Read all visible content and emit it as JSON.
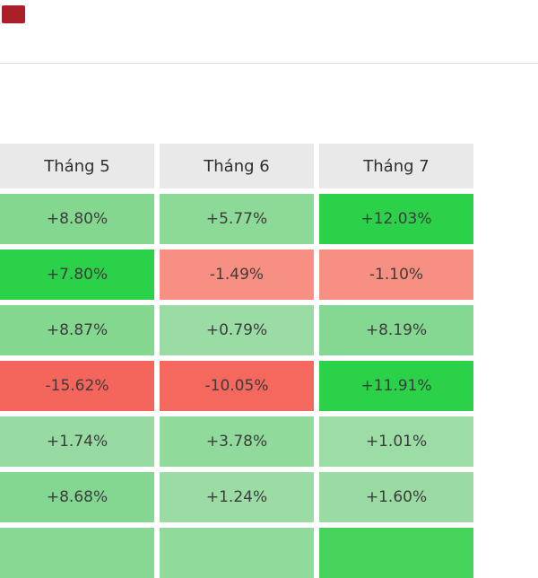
{
  "page": {
    "logo_color": "#ab2028",
    "divider_color": "#e0e0e0",
    "background": "#ffffff"
  },
  "chart_data": {
    "type": "heatmap",
    "columns": [
      "Tháng 5",
      "Tháng 6",
      "Tháng 7"
    ],
    "header_bg": "#e9e9e9",
    "text_color": "#3c3c3c",
    "cells": [
      [
        {
          "value": "+8.80%",
          "bg": "#83d78f"
        },
        {
          "value": "+5.77%",
          "bg": "#8dd998"
        },
        {
          "value": "+12.03%",
          "bg": "#2bd148"
        }
      ],
      [
        {
          "value": "+7.80%",
          "bg": "#2bd148"
        },
        {
          "value": "-1.49%",
          "bg": "#f79082"
        },
        {
          "value": "-1.10%",
          "bg": "#f79082"
        }
      ],
      [
        {
          "value": "+8.87%",
          "bg": "#83d78f"
        },
        {
          "value": "+0.79%",
          "bg": "#9bdca4"
        },
        {
          "value": "+8.19%",
          "bg": "#85d891"
        }
      ],
      [
        {
          "value": "-15.62%",
          "bg": "#f4655c"
        },
        {
          "value": "-10.05%",
          "bg": "#f4685e"
        },
        {
          "value": "+11.91%",
          "bg": "#2bd148"
        }
      ],
      [
        {
          "value": "+1.74%",
          "bg": "#98dba2"
        },
        {
          "value": "+3.78%",
          "bg": "#90da9b"
        },
        {
          "value": "+1.01%",
          "bg": "#9cdca5"
        }
      ],
      [
        {
          "value": "+8.68%",
          "bg": "#84d790"
        },
        {
          "value": "+1.24%",
          "bg": "#9adca3"
        },
        {
          "value": "+1.60%",
          "bg": "#99dba2"
        }
      ]
    ],
    "partial_row_colors": [
      "#86d892",
      "#90da9b",
      "#45d35b"
    ]
  }
}
